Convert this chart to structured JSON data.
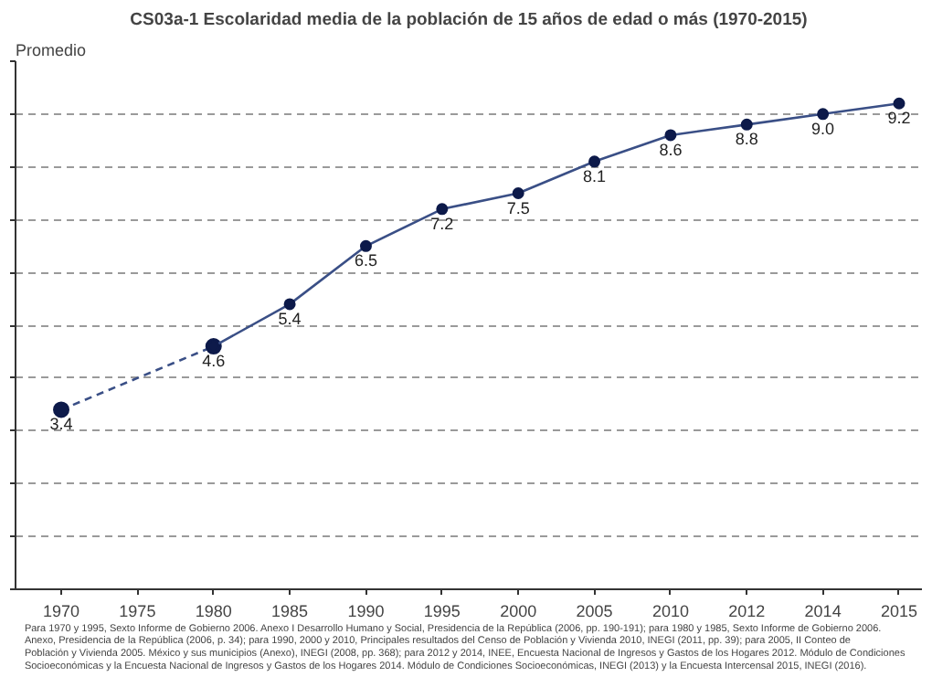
{
  "chart_data": {
    "type": "line",
    "title": "CS03a-1 Escolaridad media de la población de 15 años de edad o más (1970-2015)",
    "ylabel": "Promedio",
    "categories": [
      "1970",
      "1975",
      "1980",
      "1985",
      "1990",
      "1995",
      "2000",
      "2005",
      "2010",
      "2012",
      "2014",
      "2015"
    ],
    "series": [
      {
        "color": "#3a4f86",
        "line_style": "dashed",
        "values": [
          3.4,
          null,
          4.6,
          null,
          null,
          null,
          null,
          null,
          null,
          null,
          null,
          null
        ],
        "value_labels": [
          "3.4",
          null,
          null,
          null,
          null,
          null,
          null,
          null,
          null,
          null,
          null,
          null
        ]
      },
      {
        "color": "#3a4f86",
        "line_style": "solid",
        "values": [
          null,
          null,
          4.6,
          5.4,
          6.5,
          7.2,
          7.5,
          8.1,
          8.6,
          8.8,
          9.0,
          9.2
        ],
        "value_labels": [
          null,
          null,
          "4.6",
          "5.4",
          "6.5",
          "7.2",
          "7.5",
          "8.1",
          "8.6",
          "8.8",
          "9.0",
          "9.2"
        ]
      }
    ],
    "marker": "circle",
    "ylim": [
      0,
      10
    ],
    "yticks": [
      0,
      1,
      2,
      3,
      4,
      5,
      6,
      7,
      8,
      9,
      10
    ],
    "tick_labels": "x",
    "grid": "y",
    "annotations": [
      "Para 1970 y 1995, Sexto Informe de Gobierno 2006. Anexo I Desarrollo Humano y Social, Presidencia de la República (2006, pp. 190-191); para 1980 y 1985, Sexto Informe de Gobierno 2006. Anexo, Presidencia de la República (2006, p. 34); para 1990, 2000 y 2010, Principales resultados del Censo de Población y Vivienda 2010, INEGI (2011, pp. 39); para 2005, II Conteo de Población y Vivienda 2005. México y sus municipios (Anexo), INEGI (2008, pp. 368); para 2012 y 2014, INEE, Encuesta Nacional de Ingresos y Gastos de los Hogares 2012. Módulo de Condiciones Socioeconómicas y la Encuesta Nacional de Ingresos y Gastos de los Hogares 2014. Módulo de Condiciones Socioeconómicas, INEGI (2013) y la Encuesta Intercensal 2015, INEGI (2016)."
    ]
  }
}
